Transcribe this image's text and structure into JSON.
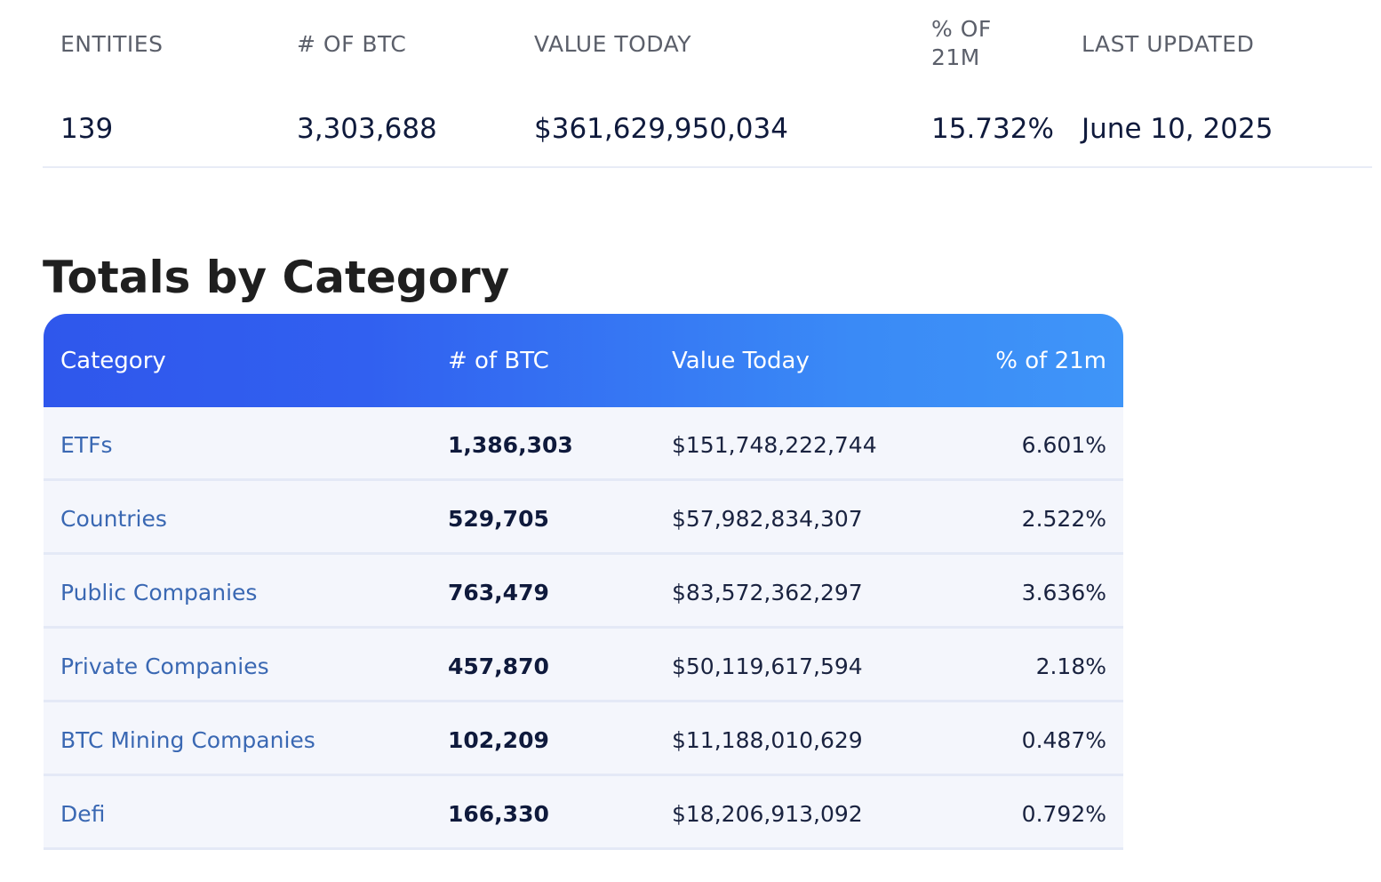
{
  "summary": {
    "entities_label": "ENTITIES",
    "entities_value": "139",
    "btc_label": "# OF BTC",
    "btc_value": "3,303,688",
    "value_today_label": "VALUE TODAY",
    "value_today_value": "$361,629,950,034",
    "pct_label": "% OF 21M",
    "pct_value": "15.732%",
    "updated_label": "LAST UPDATED",
    "updated_value": "June 10, 2025"
  },
  "section_title": "Totals by Category",
  "table": {
    "headers": [
      "Category",
      "# of BTC",
      "Value Today",
      "% of 21m"
    ],
    "rows": [
      {
        "category": "ETFs",
        "btc": "1,386,303",
        "value": "$151,748,222,744",
        "pct": "6.601%"
      },
      {
        "category": "Countries",
        "btc": "529,705",
        "value": "$57,982,834,307",
        "pct": "2.522%"
      },
      {
        "category": "Public Companies",
        "btc": "763,479",
        "value": "$83,572,362,297",
        "pct": "3.636%"
      },
      {
        "category": "Private Companies",
        "btc": "457,870",
        "value": "$50,119,617,594",
        "pct": "2.18%"
      },
      {
        "category": "BTC Mining Companies",
        "btc": "102,209",
        "value": "$11,188,010,629",
        "pct": "0.487%"
      },
      {
        "category": "Defi",
        "btc": "166,330",
        "value": "$18,206,913,092",
        "pct": "0.792%"
      }
    ]
  },
  "colors": {
    "header_gradient_start": "#2f57ec",
    "header_gradient_end": "#3f95f8",
    "category_link": "#3a68b3",
    "row_background": "#f4f6fc",
    "text_dark": "#0f1a3c"
  }
}
